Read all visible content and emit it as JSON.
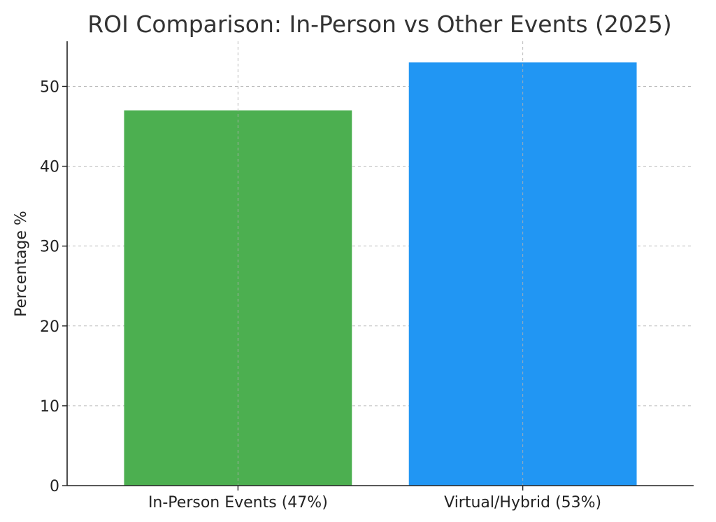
{
  "chart_data": {
    "type": "bar",
    "title": "ROI Comparison: In-Person vs Other Events (2025)",
    "xlabel": "",
    "ylabel": "Percentage %",
    "categories": [
      "In-Person Events (47%)",
      "Virtual/Hybrid (53%)"
    ],
    "values": [
      47,
      53
    ],
    "colors": [
      "#4caf50",
      "#2196f3"
    ],
    "ylim": [
      0,
      55.65
    ],
    "yticks": [
      0,
      10,
      20,
      30,
      40,
      50
    ],
    "grid": true,
    "legend": "none"
  }
}
